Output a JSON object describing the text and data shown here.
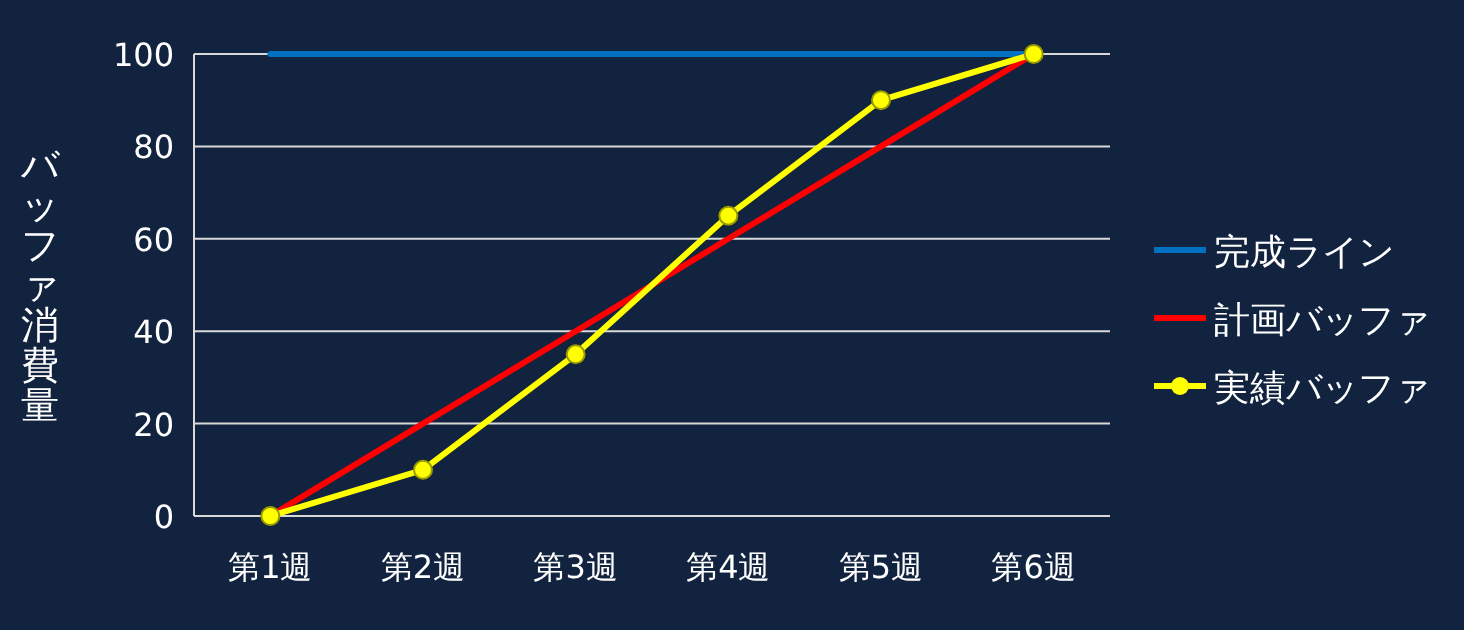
{
  "chart_data": {
    "type": "line",
    "ylabel": "バッファ消費量",
    "categories": [
      "第1週",
      "第2週",
      "第3週",
      "第4週",
      "第5週",
      "第6週"
    ],
    "series": [
      {
        "name": "完成ライン",
        "color": "#0070c0",
        "values": [
          100,
          100,
          100,
          100,
          100,
          100
        ],
        "marker": "none"
      },
      {
        "name": "計画バッファ",
        "color": "#ff0000",
        "values": [
          0,
          20,
          40,
          60,
          80,
          100
        ],
        "marker": "none"
      },
      {
        "name": "実績バッファ",
        "color": "#ffff00",
        "values": [
          0,
          10,
          35,
          65,
          90,
          100
        ],
        "marker": "circle"
      }
    ],
    "ylim": [
      0,
      100
    ],
    "yticks": [
      0,
      20,
      40,
      60,
      80,
      100
    ],
    "grid": "y",
    "legend": "right",
    "line_style": "solid"
  }
}
